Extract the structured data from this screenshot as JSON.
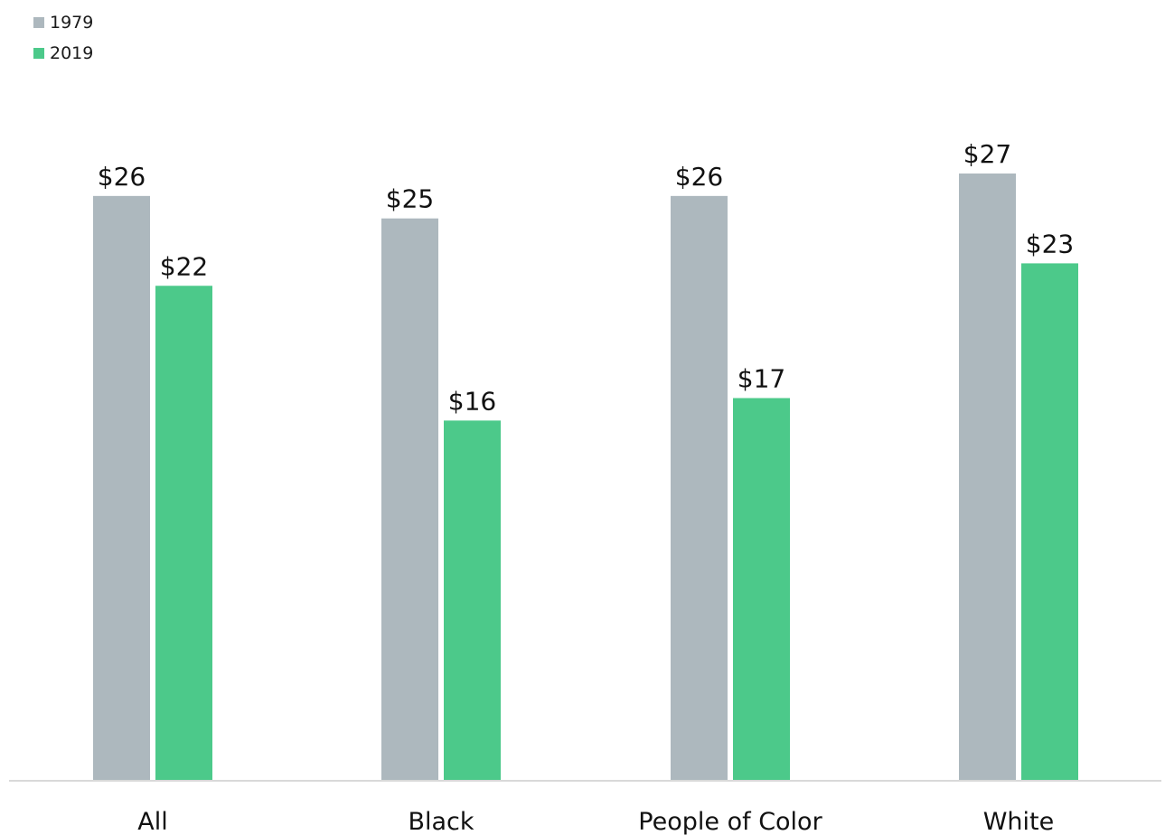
{
  "chart_data": {
    "type": "bar",
    "categories": [
      "All",
      "Black",
      "People of Color",
      "White"
    ],
    "series": [
      {
        "name": "1979",
        "color": "#adb8be",
        "values": [
          26,
          25,
          26,
          27
        ],
        "labels": [
          "$26",
          "$25",
          "$26",
          "$27"
        ]
      },
      {
        "name": "2019",
        "color": "#4cc98a",
        "values": [
          22,
          16,
          17,
          23
        ],
        "labels": [
          "$22",
          "$16",
          "$17",
          "$23"
        ]
      }
    ],
    "ylim": [
      0,
      27
    ],
    "grid": false,
    "legend_position": "top-left",
    "axis_color": "#d9d9d9"
  }
}
